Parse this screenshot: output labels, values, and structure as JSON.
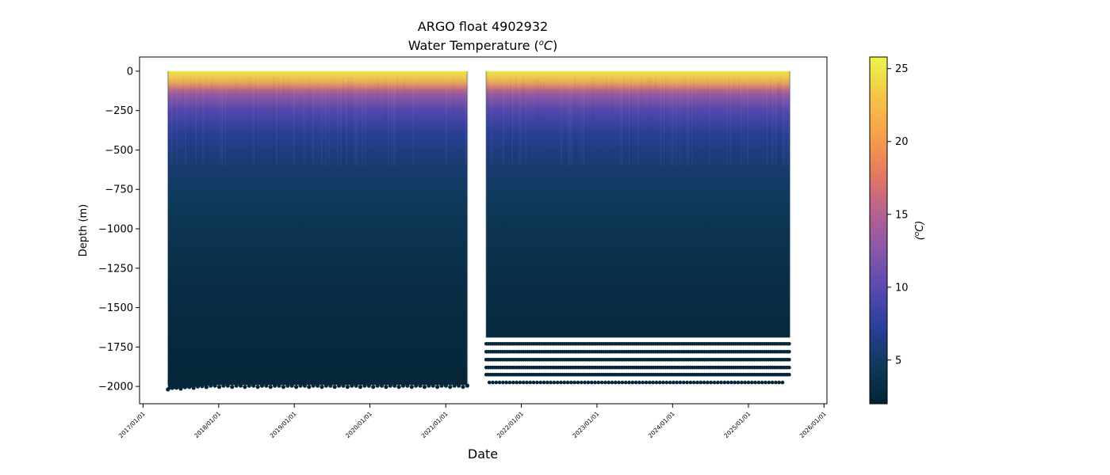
{
  "chart_data": {
    "type": "scatter",
    "title": "ARGO float 4902932",
    "subtitle_text": "Water Temperature (",
    "subtitle_sup": "o",
    "subtitle_unit": "C",
    "subtitle_close": ")",
    "xlabel": "Date",
    "ylabel": "Depth (m)",
    "colorbar_label": "(oC)",
    "colorbar_label_sup": "o",
    "colorbar_label_unit": "C",
    "colormap": "thermal",
    "colormap_stops": [
      "#042333",
      "#0f3a5c",
      "#2c3e9a",
      "#5a49b0",
      "#8a57a8",
      "#b8628e",
      "#e67a5f",
      "#f7a14a",
      "#f5c647",
      "#e8f74b"
    ],
    "x_range": [
      "2016-12-15",
      "2026-01-15"
    ],
    "y_range": [
      -2110,
      90
    ],
    "color_range": [
      2.0,
      25.8
    ],
    "x_ticks": [
      "2017/01/01",
      "2018/01/01",
      "2019/01/01",
      "2020/01/01",
      "2021/01/01",
      "2022/01/01",
      "2023/01/01",
      "2024/01/01",
      "2025/01/01",
      "2026/01/01"
    ],
    "y_ticks": [
      0,
      -250,
      -500,
      -750,
      -1000,
      -1250,
      -1500,
      -1750,
      -2000
    ],
    "y_tick_labels": [
      "0",
      "−250",
      "−500",
      "−750",
      "−1000",
      "−1250",
      "−1500",
      "−1750",
      "−2000"
    ],
    "color_ticks": [
      5,
      10,
      15,
      20,
      25
    ],
    "color_tick_labels": [
      "5",
      "10",
      "15",
      "20",
      "25"
    ],
    "segments": [
      {
        "start": "2017-05-01",
        "end": "2021-04-15",
        "max_depth": -1990
      },
      {
        "start": "2021-07-15",
        "end": "2025-07-20",
        "max_depth": -1690
      }
    ],
    "deep_sample_levels": [
      -1730,
      -1780,
      -1830,
      -1880,
      -1925,
      -1975
    ],
    "temperature_profile": [
      {
        "depth": 0,
        "temp": 20.5
      },
      {
        "depth": -50,
        "temp": 19.0
      },
      {
        "depth": -100,
        "temp": 16.5
      },
      {
        "depth": -150,
        "temp": 13.0
      },
      {
        "depth": -250,
        "temp": 9.5
      },
      {
        "depth": -400,
        "temp": 7.0
      },
      {
        "depth": -600,
        "temp": 5.5
      },
      {
        "depth": -800,
        "temp": 4.6
      },
      {
        "depth": -1000,
        "temp": 4.0
      },
      {
        "depth": -1300,
        "temp": 3.3
      },
      {
        "depth": -1600,
        "temp": 2.8
      },
      {
        "depth": -2000,
        "temp": 2.4
      }
    ],
    "surface_max_temp": 25.5,
    "grid": false
  }
}
